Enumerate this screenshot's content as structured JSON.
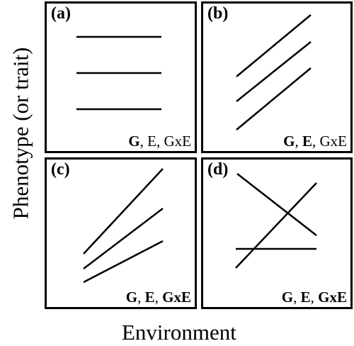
{
  "axes": {
    "y_label": "Phenotype (or trait)",
    "x_label": "Environment"
  },
  "panels": {
    "a": {
      "letter": "(a)",
      "effect_g": "G",
      "effect_e": "E",
      "effect_gxe": "GxE",
      "sep1": ", ",
      "sep2": ", ",
      "bold": {
        "g": true,
        "e": false,
        "gxe": false
      }
    },
    "b": {
      "letter": "(b)",
      "effect_g": "G",
      "effect_e": "E",
      "effect_gxe": "GxE",
      "sep1": ", ",
      "sep2": ", ",
      "bold": {
        "g": true,
        "e": true,
        "gxe": false
      }
    },
    "c": {
      "letter": "(c)",
      "effect_g": "G",
      "effect_e": "E",
      "effect_gxe": "GxE",
      "sep1": ", ",
      "sep2": ", ",
      "bold": {
        "g": true,
        "e": true,
        "gxe": true
      }
    },
    "d": {
      "letter": "(d)",
      "effect_g": "G",
      "effect_e": "E",
      "effect_gxe": "GxE",
      "sep1": ", ",
      "sep2": ", ",
      "bold": {
        "g": true,
        "e": true,
        "gxe": true
      }
    }
  },
  "colors": {
    "line": "#000000",
    "frame": "#000000",
    "background": "#ffffff"
  }
}
